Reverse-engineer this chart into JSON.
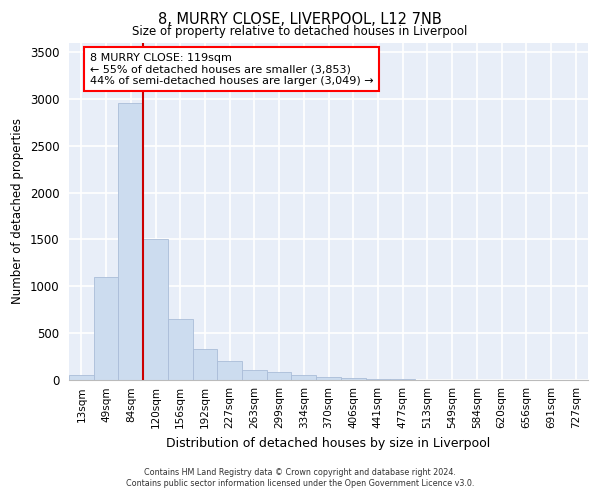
{
  "title_line1": "8, MURRY CLOSE, LIVERPOOL, L12 7NB",
  "title_line2": "Size of property relative to detached houses in Liverpool",
  "xlabel": "Distribution of detached houses by size in Liverpool",
  "ylabel": "Number of detached properties",
  "categories": [
    "13sqm",
    "49sqm",
    "84sqm",
    "120sqm",
    "156sqm",
    "192sqm",
    "227sqm",
    "263sqm",
    "299sqm",
    "334sqm",
    "370sqm",
    "406sqm",
    "441sqm",
    "477sqm",
    "513sqm",
    "549sqm",
    "584sqm",
    "620sqm",
    "656sqm",
    "691sqm",
    "727sqm"
  ],
  "values": [
    50,
    1100,
    2950,
    1500,
    650,
    330,
    200,
    110,
    90,
    55,
    35,
    20,
    15,
    10,
    5,
    5,
    3,
    2,
    2,
    2,
    2
  ],
  "bar_color": "#ccdcef",
  "bar_edge_color": "#aabdd8",
  "vline_color": "#cc0000",
  "vline_x": 2.5,
  "annotation_text": "8 MURRY CLOSE: 119sqm\n← 55% of detached houses are smaller (3,853)\n44% of semi-detached houses are larger (3,049) →",
  "annotation_box_color": "white",
  "annotation_box_edge_color": "red",
  "ylim": [
    0,
    3600
  ],
  "yticks": [
    0,
    500,
    1000,
    1500,
    2000,
    2500,
    3000,
    3500
  ],
  "background_color": "#e8eef8",
  "grid_color": "white",
  "footer_line1": "Contains HM Land Registry data © Crown copyright and database right 2024.",
  "footer_line2": "Contains public sector information licensed under the Open Government Licence v3.0."
}
